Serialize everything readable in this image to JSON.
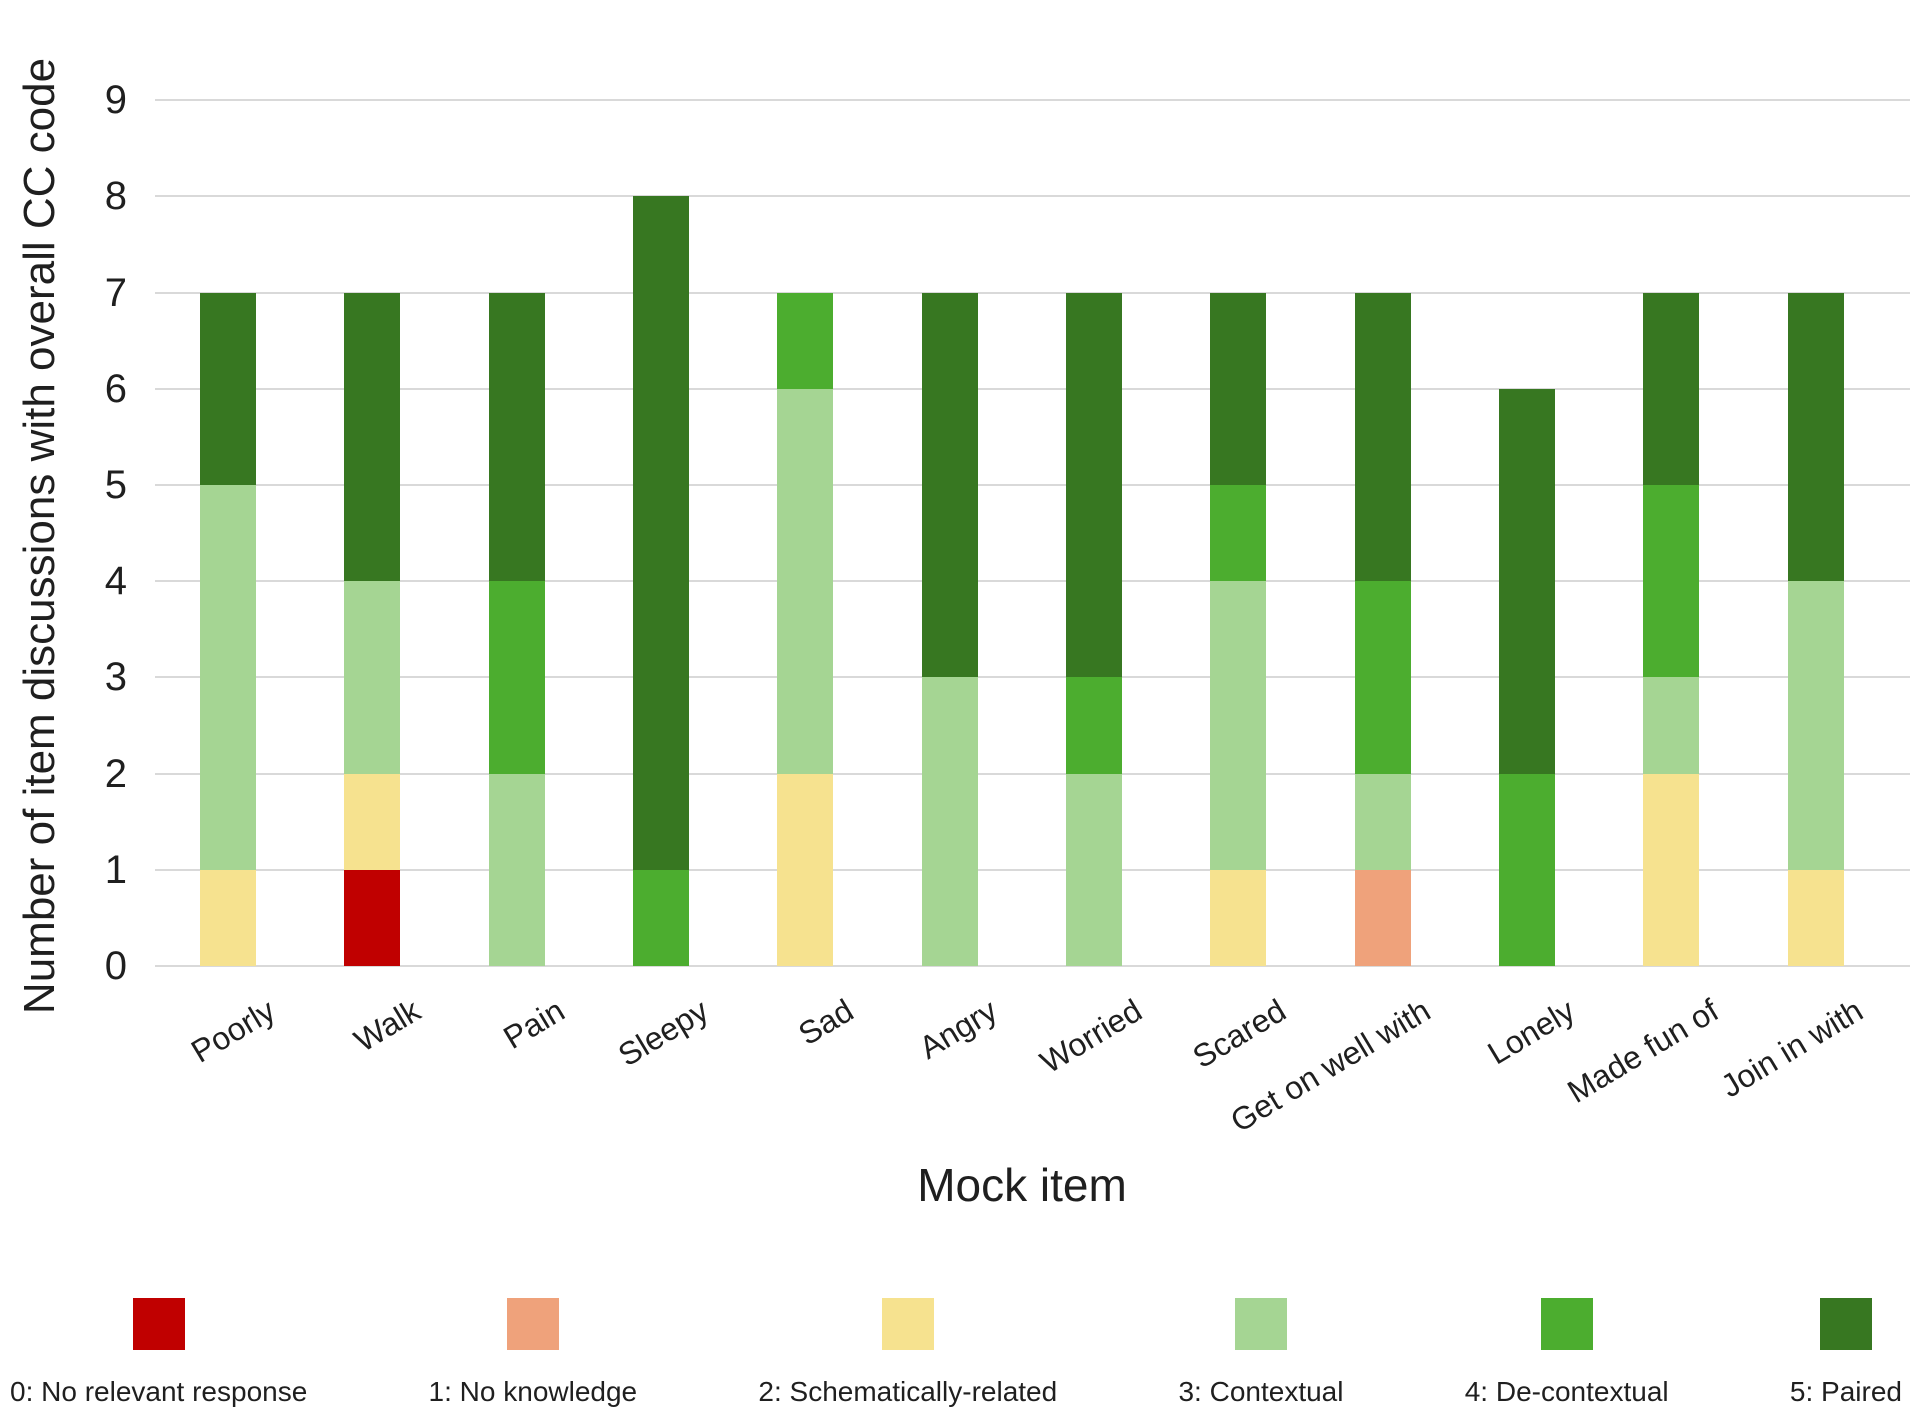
{
  "chart_data": {
    "type": "bar",
    "stacked": true,
    "title": "",
    "xlabel": "Mock item",
    "ylabel": "Number of item discussions with overall CC code",
    "categories": [
      "Poorly",
      "Walk",
      "Pain",
      "Sleepy",
      "Sad",
      "Angry",
      "Worried",
      "Scared",
      "Get on well with",
      "Lonely",
      "Made fun of",
      "Join in with"
    ],
    "series": [
      {
        "name": "0: No relevant response",
        "color": "#C00000",
        "values": [
          0,
          1,
          0,
          0,
          0,
          0,
          0,
          0,
          0,
          0,
          0,
          0
        ]
      },
      {
        "name": "1: No knowledge",
        "color": "#EFA27B",
        "values": [
          0,
          0,
          0,
          0,
          0,
          0,
          0,
          0,
          1,
          0,
          0,
          0
        ]
      },
      {
        "name": "2: Schematically-related",
        "color": "#F6E28F",
        "values": [
          1,
          1,
          0,
          0,
          2,
          0,
          0,
          1,
          0,
          0,
          2,
          1
        ]
      },
      {
        "name": "3: Contextual",
        "color": "#A5D593",
        "values": [
          4,
          2,
          2,
          0,
          4,
          3,
          2,
          3,
          1,
          0,
          1,
          3
        ]
      },
      {
        "name": "4: De-contextual",
        "color": "#4CAD2F",
        "values": [
          0,
          0,
          2,
          1,
          1,
          0,
          1,
          1,
          2,
          2,
          2,
          0
        ]
      },
      {
        "name": "5: Paired",
        "color": "#377721",
        "values": [
          2,
          3,
          3,
          7,
          0,
          4,
          4,
          2,
          3,
          4,
          2,
          3
        ]
      }
    ],
    "bar_totals": [
      7,
      7,
      7,
      8,
      7,
      7,
      7,
      7,
      7,
      6,
      7,
      7
    ],
    "y_ticks": [
      0,
      1,
      2,
      3,
      4,
      5,
      6,
      7,
      8,
      9
    ],
    "ylim": [
      0,
      9
    ],
    "grid": "horizontal",
    "legend_position": "bottom"
  },
  "colors": {
    "background": "#FFFFFF",
    "gridline": "#D9D9D9",
    "text": "#1F1F1F"
  }
}
